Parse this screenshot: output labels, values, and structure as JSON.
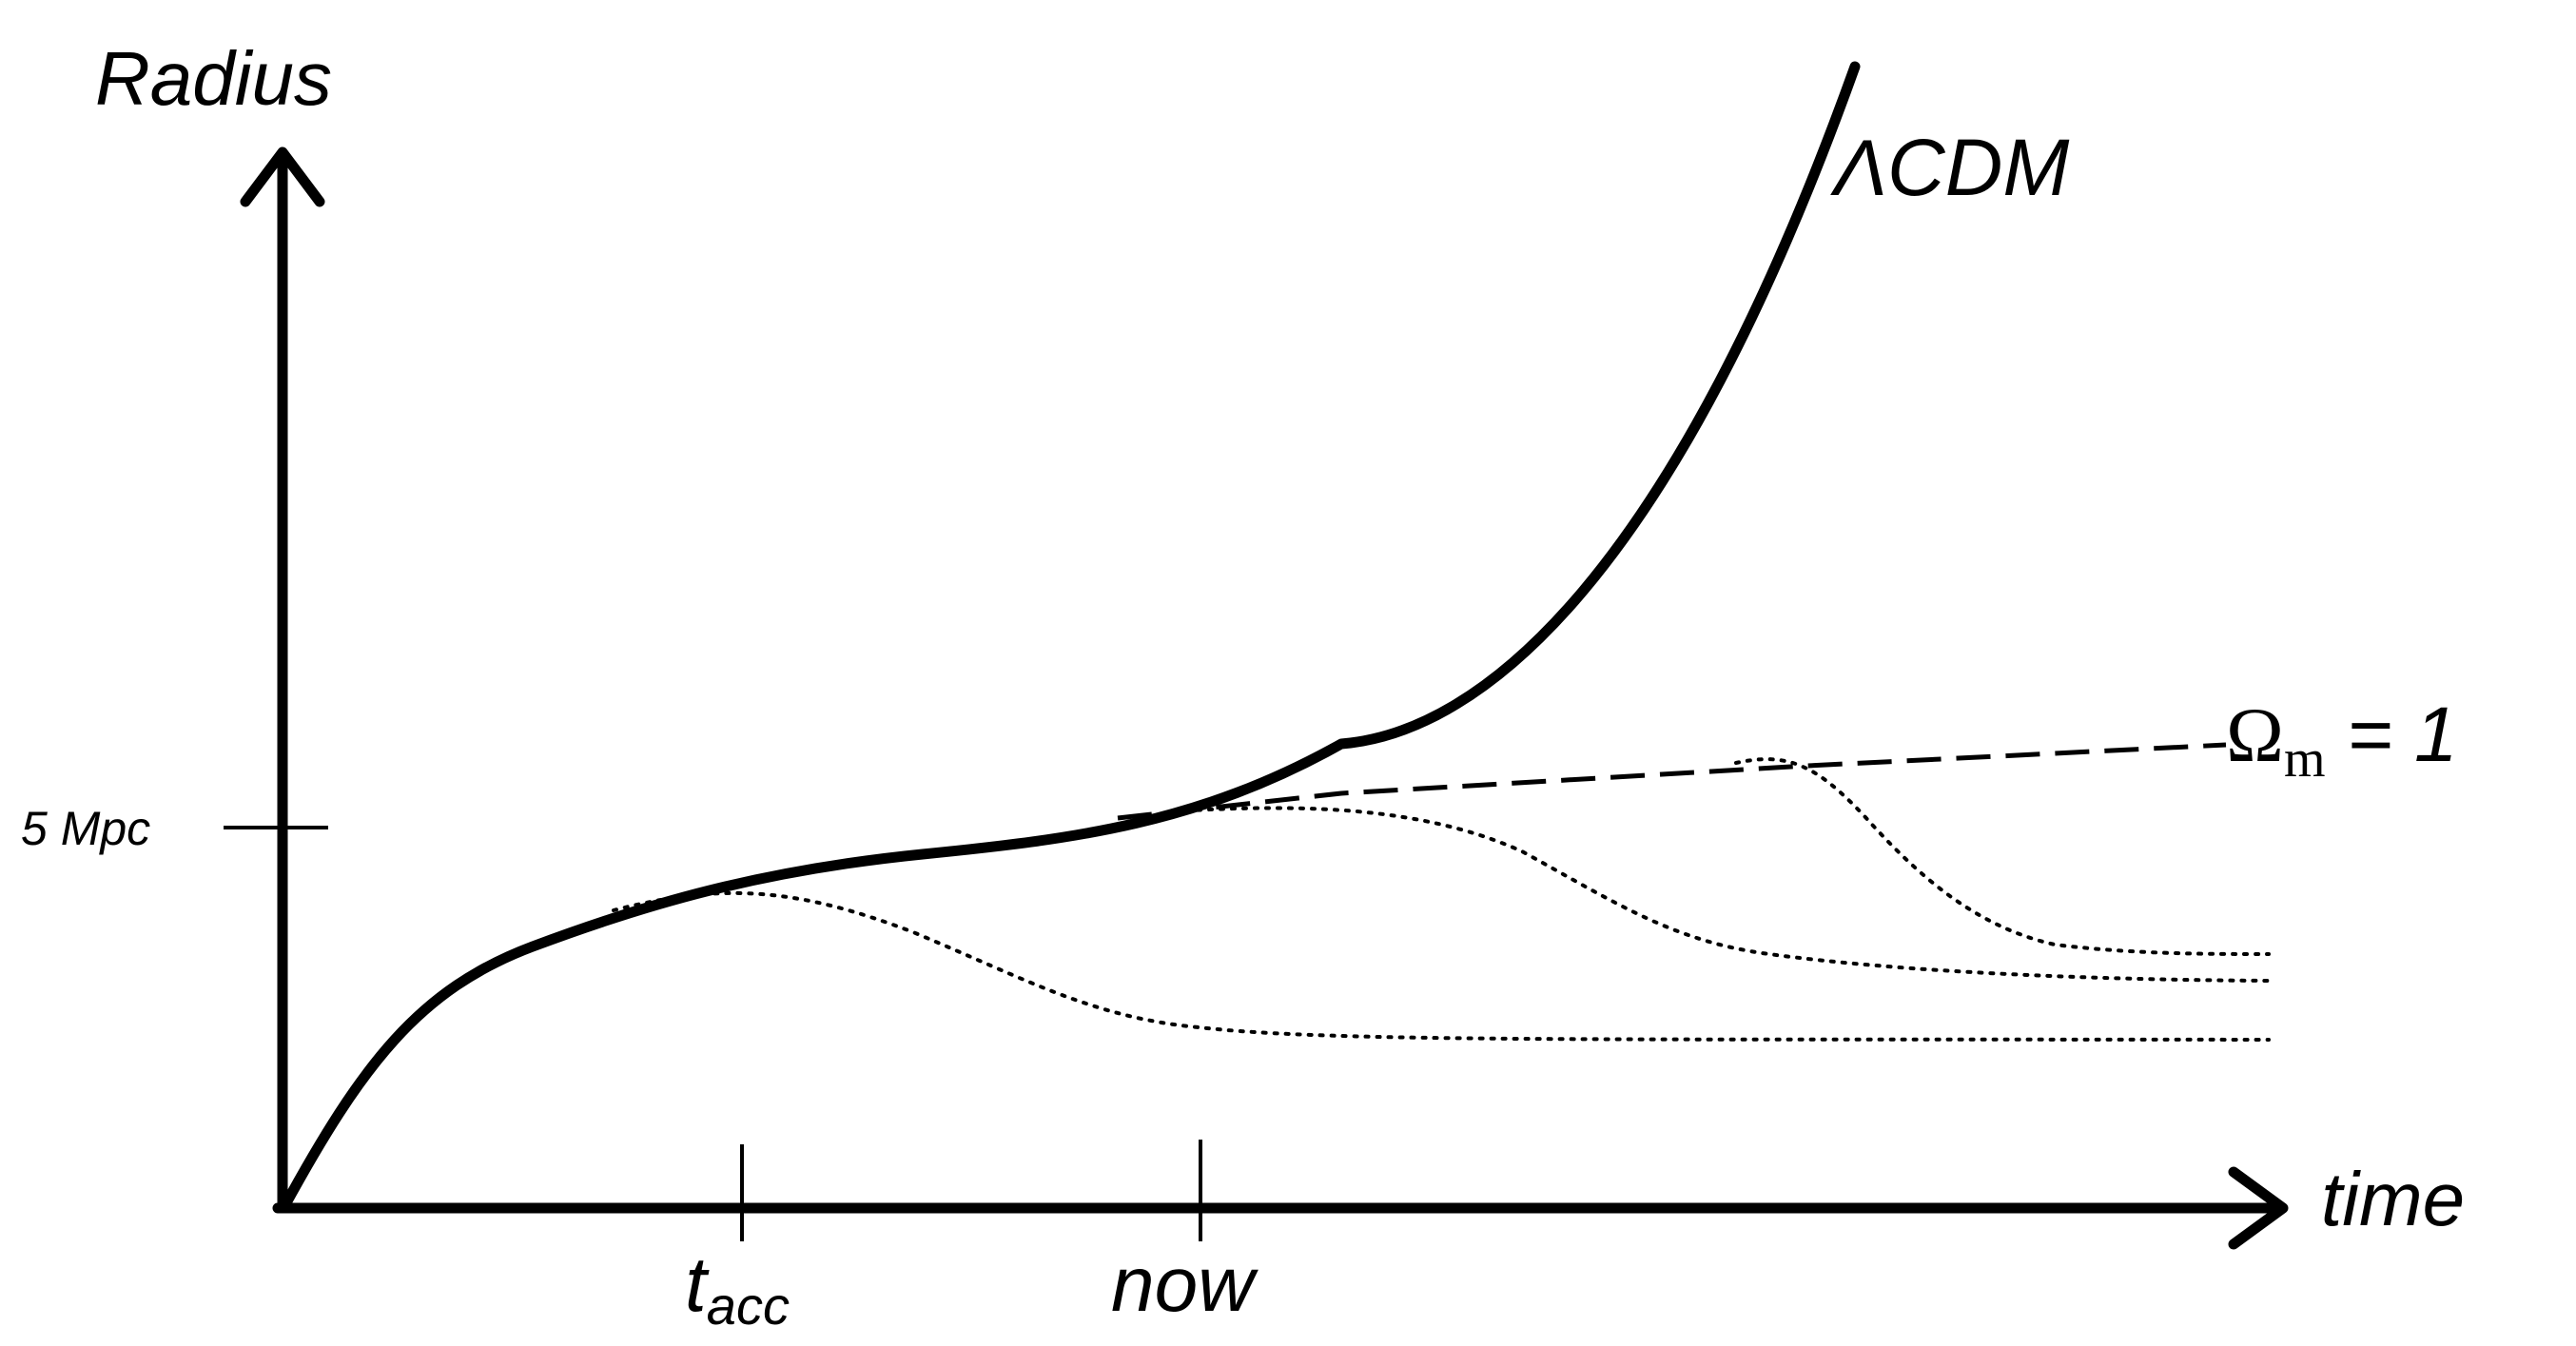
{
  "diagram": {
    "y_axis_label": "Radius",
    "x_axis_label": "time",
    "y_tick_label": "5 Mpc",
    "t_acc_main": "t",
    "t_acc_sub": "acc",
    "now_label": "now",
    "lcdm_label": "ΛCDM",
    "omega_main": "Ω",
    "omega_sub": "m",
    "omega_rest": " = 1",
    "colors": {
      "ink": "#000000",
      "background": "#ffffff"
    }
  }
}
